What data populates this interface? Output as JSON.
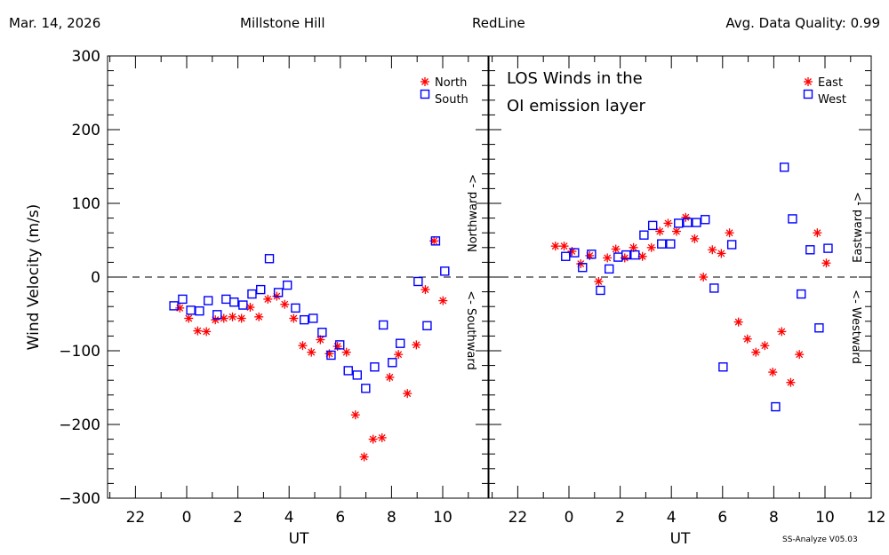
{
  "header": {
    "date": "Mar. 14, 2026",
    "site": "Millstone Hill",
    "instrument": "RedLine",
    "quality": "Avg. Data Quality: 0.99"
  },
  "footer": "SS-Analyze V05.03",
  "colors": {
    "star": "#ff0000",
    "square": "#0000ff"
  },
  "chart_data": [
    {
      "type": "scatter",
      "panel": "left",
      "xlabel": "UT",
      "ylabel": "Wind Velocity (m/s)",
      "ylim": [
        -300,
        300
      ],
      "yticks": [
        "300",
        "200",
        "100",
        "0",
        "−100",
        "−200",
        "−300"
      ],
      "xticks": [
        "22",
        "0",
        "2",
        "4",
        "6",
        "8",
        "10"
      ],
      "zero_line": "dashed",
      "direction_labels": {
        "positive": "Northward ->",
        "negative": "<- Southward"
      },
      "legend_position": "top-right",
      "series": [
        {
          "name": "North",
          "marker": "asterisk",
          "color": "#ff0000",
          "x": [
            23.73,
            0.08,
            0.43,
            0.77,
            1.12,
            1.45,
            1.79,
            2.14,
            2.48,
            2.82,
            3.17,
            3.52,
            3.83,
            4.18,
            4.53,
            4.87,
            5.22,
            5.57,
            5.89,
            6.24,
            6.59,
            6.93,
            7.28,
            7.63,
            7.93,
            8.27,
            8.62,
            8.97,
            9.32,
            9.66,
            10.01
          ],
          "y": [
            -42,
            -56,
            -73,
            -74,
            -58,
            -56,
            -54,
            -56,
            -41,
            -54,
            -30,
            -26,
            -37,
            -56,
            -93,
            -102,
            -85,
            -104,
            -94,
            -102,
            -187,
            -244,
            -220,
            -218,
            -136,
            -105,
            -158,
            -92,
            -17,
            49,
            -32
          ]
        },
        {
          "name": "South",
          "marker": "square",
          "color": "#0000ff",
          "x": [
            23.5,
            23.84,
            0.16,
            0.5,
            0.84,
            1.19,
            1.54,
            1.85,
            2.2,
            2.55,
            2.89,
            3.23,
            3.58,
            3.93,
            4.25,
            4.59,
            4.94,
            5.29,
            5.64,
            5.98,
            6.31,
            6.66,
            6.99,
            7.34,
            7.68,
            8.03,
            8.34,
            9.04,
            9.39,
            9.72,
            10.08
          ],
          "y": [
            -39,
            -30,
            -45,
            -46,
            -32,
            -51,
            -30,
            -34,
            -38,
            -23,
            -17,
            25,
            -21,
            -11,
            -42,
            -58,
            -56,
            -75,
            -106,
            -92,
            -127,
            -133,
            -151,
            -122,
            -65,
            -116,
            -90,
            -6,
            -66,
            49,
            8
          ]
        }
      ]
    },
    {
      "type": "scatter",
      "panel": "right",
      "xlabel": "UT",
      "title_lines": [
        "LOS Winds in the",
        "OI emission layer"
      ],
      "ylim": [
        -300,
        300
      ],
      "xticks": [
        "22",
        "0",
        "2",
        "4",
        "6",
        "8",
        "10",
        "12"
      ],
      "zero_line": "dashed",
      "direction_labels": {
        "positive": "Eastward ->",
        "negative": "<- Westward"
      },
      "legend_position": "top-right",
      "series": [
        {
          "name": "East",
          "marker": "asterisk",
          "color": "#ff0000",
          "x": [
            23.47,
            23.81,
            0.12,
            0.46,
            0.81,
            1.16,
            1.5,
            1.83,
            2.18,
            2.52,
            2.87,
            3.22,
            3.55,
            3.87,
            4.2,
            4.56,
            4.91,
            5.25,
            5.6,
            5.95,
            6.27,
            6.62,
            6.97,
            7.3,
            7.65,
            7.96,
            8.31,
            8.66,
            9.0,
            9.7,
            10.05
          ],
          "y": [
            42,
            42,
            35,
            18,
            29,
            -6,
            26,
            38,
            26,
            40,
            28,
            40,
            62,
            73,
            62,
            81,
            52,
            0,
            37,
            32,
            60,
            -61,
            -84,
            -102,
            -93,
            -129,
            -74,
            -143,
            -105,
            60,
            19
          ]
        },
        {
          "name": "West",
          "marker": "square",
          "color": "#0000ff",
          "x": [
            23.87,
            0.22,
            0.53,
            0.88,
            1.23,
            1.57,
            1.92,
            2.23,
            2.58,
            2.93,
            3.27,
            3.62,
            3.97,
            4.28,
            4.63,
            4.98,
            5.32,
            5.67,
            6.02,
            6.36,
            8.07,
            8.41,
            8.73,
            9.07,
            9.42,
            9.77,
            10.12
          ],
          "y": [
            28,
            33,
            13,
            31,
            -18,
            11,
            27,
            30,
            30,
            57,
            70,
            45,
            45,
            73,
            74,
            74,
            78,
            -15,
            -122,
            44,
            -176,
            149,
            79,
            -23,
            37,
            -69,
            39
          ]
        }
      ]
    }
  ]
}
